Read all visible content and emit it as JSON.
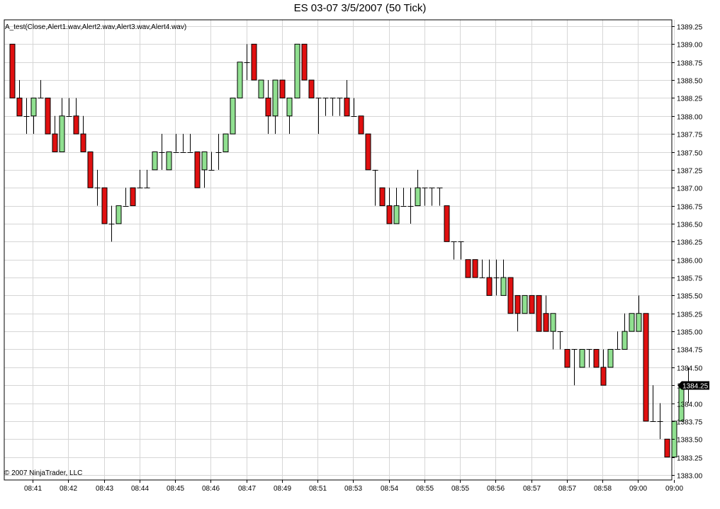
{
  "title": "ES 03-07  3/5/2007  (50 Tick)",
  "indicator_label": "A_test(Close,Alert1.wav,Alert2.wav,Alert3.wav,Alert4.wav)",
  "copyright": "© 2007 NinjaTrader, LLC",
  "colors": {
    "up": "#90e090",
    "down": "#e01010",
    "doji": "#000000",
    "grid": "#d6d6d6"
  },
  "chart_data": {
    "type": "candlestick",
    "ylim": [
      1383.0,
      1389.25
    ],
    "y_ticks": [
      "1389.25",
      "1389.00",
      "1388.75",
      "1388.50",
      "1388.25",
      "1388.00",
      "1387.75",
      "1387.50",
      "1387.25",
      "1387.00",
      "1386.75",
      "1386.50",
      "1386.25",
      "1386.00",
      "1385.75",
      "1385.50",
      "1385.25",
      "1385.00",
      "1384.75",
      "1384.50",
      "1384.25",
      "1384.00",
      "1383.75",
      "1383.50",
      "1383.25",
      "1383.00"
    ],
    "x_ticks": [
      {
        "bar": 3,
        "label": "08:41"
      },
      {
        "bar": 8,
        "label": "08:42"
      },
      {
        "bar": 13,
        "label": "08:43"
      },
      {
        "bar": 18,
        "label": "08:44"
      },
      {
        "bar": 23,
        "label": "08:45"
      },
      {
        "bar": 28,
        "label": "08:46"
      },
      {
        "bar": 33,
        "label": "08:47"
      },
      {
        "bar": 38,
        "label": "08:49"
      },
      {
        "bar": 43,
        "label": "08:51"
      },
      {
        "bar": 48,
        "label": "08:53"
      },
      {
        "bar": 53,
        "label": "08:54"
      },
      {
        "bar": 58,
        "label": "08:55"
      },
      {
        "bar": 63,
        "label": "08:55"
      },
      {
        "bar": 68,
        "label": "08:56"
      },
      {
        "bar": 73,
        "label": "08:57"
      },
      {
        "bar": 78,
        "label": "08:57"
      },
      {
        "bar": 83,
        "label": "08:58"
      },
      {
        "bar": 88,
        "label": "09:00"
      },
      {
        "bar": 93,
        "label": "09:00"
      }
    ],
    "last_price": "1384.25",
    "bars": [
      [
        1389.0,
        1389.0,
        1388.25,
        1388.25
      ],
      [
        1388.25,
        1388.5,
        1388.0,
        1388.0
      ],
      [
        1388.0,
        1388.25,
        1387.75,
        1388.0
      ],
      [
        1388.0,
        1388.25,
        1387.75,
        1388.25
      ],
      [
        1388.25,
        1388.5,
        1388.25,
        1388.25
      ],
      [
        1388.25,
        1388.25,
        1387.75,
        1387.75
      ],
      [
        1387.75,
        1388.0,
        1387.5,
        1387.5
      ],
      [
        1387.5,
        1388.25,
        1387.5,
        1388.0
      ],
      [
        1388.0,
        1388.25,
        1388.0,
        1388.0
      ],
      [
        1388.0,
        1388.25,
        1387.75,
        1387.75
      ],
      [
        1387.75,
        1388.0,
        1387.5,
        1387.5
      ],
      [
        1387.5,
        1387.5,
        1387.0,
        1387.0
      ],
      [
        1387.0,
        1387.25,
        1386.75,
        1387.0
      ],
      [
        1387.0,
        1387.0,
        1386.5,
        1386.5
      ],
      [
        1386.5,
        1386.75,
        1386.25,
        1386.5
      ],
      [
        1386.5,
        1386.75,
        1386.5,
        1386.75
      ],
      [
        1386.75,
        1387.0,
        1386.75,
        1386.75
      ],
      [
        1387.0,
        1387.0,
        1386.75,
        1386.75
      ],
      [
        1387.0,
        1387.25,
        1387.0,
        1387.0
      ],
      [
        1387.0,
        1387.25,
        1387.0,
        1387.0
      ],
      [
        1387.25,
        1387.5,
        1387.25,
        1387.5
      ],
      [
        1387.5,
        1387.75,
        1387.25,
        1387.5
      ],
      [
        1387.25,
        1387.5,
        1387.25,
        1387.5
      ],
      [
        1387.5,
        1387.75,
        1387.5,
        1387.5
      ],
      [
        1387.5,
        1387.75,
        1387.5,
        1387.5
      ],
      [
        1387.5,
        1387.75,
        1387.5,
        1387.5
      ],
      [
        1387.5,
        1387.5,
        1387.0,
        1387.0
      ],
      [
        1387.25,
        1387.5,
        1387.0,
        1387.5
      ],
      [
        1387.25,
        1387.5,
        1387.25,
        1387.25
      ],
      [
        1387.5,
        1387.75,
        1387.25,
        1387.5
      ],
      [
        1387.5,
        1387.75,
        1387.5,
        1387.75
      ],
      [
        1387.75,
        1388.25,
        1387.75,
        1388.25
      ],
      [
        1388.25,
        1388.75,
        1388.25,
        1388.75
      ],
      [
        1388.75,
        1389.0,
        1388.5,
        1388.75
      ],
      [
        1389.0,
        1389.0,
        1388.5,
        1388.5
      ],
      [
        1388.25,
        1388.5,
        1388.25,
        1388.5
      ],
      [
        1388.25,
        1388.5,
        1387.75,
        1388.0
      ],
      [
        1388.0,
        1388.5,
        1387.75,
        1388.5
      ],
      [
        1388.5,
        1388.5,
        1388.25,
        1388.25
      ],
      [
        1388.0,
        1388.25,
        1387.75,
        1388.25
      ],
      [
        1388.25,
        1389.0,
        1388.25,
        1389.0
      ],
      [
        1389.0,
        1389.0,
        1388.5,
        1388.5
      ],
      [
        1388.5,
        1388.5,
        1388.25,
        1388.25
      ],
      [
        1388.25,
        1388.25,
        1387.75,
        1388.25
      ],
      [
        1388.25,
        1388.25,
        1388.0,
        1388.25
      ],
      [
        1388.25,
        1388.25,
        1388.0,
        1388.25
      ],
      [
        1388.25,
        1388.25,
        1388.0,
        1388.25
      ],
      [
        1388.25,
        1388.5,
        1388.0,
        1388.0
      ],
      [
        1388.0,
        1388.25,
        1388.0,
        1388.0
      ],
      [
        1388.0,
        1388.0,
        1387.75,
        1387.75
      ],
      [
        1387.75,
        1387.75,
        1387.25,
        1387.25
      ],
      [
        1387.25,
        1387.25,
        1386.75,
        1387.25
      ],
      [
        1387.0,
        1387.0,
        1386.75,
        1386.75
      ],
      [
        1386.75,
        1387.0,
        1386.5,
        1386.5
      ],
      [
        1386.5,
        1387.0,
        1386.5,
        1386.75
      ],
      [
        1386.75,
        1387.0,
        1386.75,
        1386.75
      ],
      [
        1386.75,
        1387.0,
        1386.5,
        1386.75
      ],
      [
        1386.75,
        1387.25,
        1386.75,
        1387.0
      ],
      [
        1387.0,
        1387.0,
        1386.75,
        1387.0
      ],
      [
        1387.0,
        1387.0,
        1386.75,
        1387.0
      ],
      [
        1387.0,
        1387.0,
        1386.75,
        1387.0
      ],
      [
        1386.75,
        1386.75,
        1386.25,
        1386.25
      ],
      [
        1386.25,
        1386.25,
        1386.0,
        1386.25
      ],
      [
        1386.25,
        1386.25,
        1386.0,
        1386.25
      ],
      [
        1386.0,
        1386.0,
        1385.75,
        1385.75
      ],
      [
        1386.0,
        1386.0,
        1385.75,
        1385.75
      ],
      [
        1385.75,
        1386.0,
        1385.75,
        1385.75
      ],
      [
        1385.75,
        1386.0,
        1385.5,
        1385.5
      ],
      [
        1385.75,
        1386.0,
        1385.5,
        1385.75
      ],
      [
        1385.5,
        1386.0,
        1385.5,
        1385.75
      ],
      [
        1385.75,
        1385.75,
        1385.25,
        1385.25
      ],
      [
        1385.5,
        1385.5,
        1385.0,
        1385.25
      ],
      [
        1385.25,
        1385.5,
        1385.25,
        1385.5
      ],
      [
        1385.5,
        1385.5,
        1385.25,
        1385.25
      ],
      [
        1385.5,
        1385.5,
        1385.0,
        1385.0
      ],
      [
        1385.25,
        1385.5,
        1385.0,
        1385.0
      ],
      [
        1385.0,
        1385.25,
        1384.75,
        1385.25
      ],
      [
        1385.0,
        1385.0,
        1384.75,
        1385.0
      ],
      [
        1384.75,
        1384.75,
        1384.5,
        1384.5
      ],
      [
        1384.75,
        1384.75,
        1384.25,
        1384.75
      ],
      [
        1384.5,
        1384.75,
        1384.5,
        1384.75
      ],
      [
        1384.75,
        1384.75,
        1384.5,
        1384.75
      ],
      [
        1384.75,
        1384.75,
        1384.5,
        1384.5
      ],
      [
        1384.5,
        1384.75,
        1384.25,
        1384.25
      ],
      [
        1384.5,
        1384.75,
        1384.5,
        1384.75
      ],
      [
        1384.75,
        1385.0,
        1384.75,
        1384.75
      ],
      [
        1384.75,
        1385.25,
        1384.75,
        1385.0
      ],
      [
        1385.0,
        1385.25,
        1385.0,
        1385.25
      ],
      [
        1385.0,
        1385.5,
        1385.0,
        1385.25
      ],
      [
        1385.25,
        1385.25,
        1383.75,
        1383.75
      ],
      [
        1383.75,
        1384.25,
        1383.75,
        1383.75
      ],
      [
        1383.75,
        1384.0,
        1383.5,
        1383.75
      ],
      [
        1383.5,
        1383.5,
        1383.25,
        1383.25
      ],
      [
        1383.25,
        1383.75,
        1383.25,
        1383.75
      ],
      [
        1383.75,
        1384.25,
        1383.75,
        1384.25
      ],
      [
        1384.25,
        1384.5,
        1384.0,
        1384.25
      ]
    ]
  }
}
